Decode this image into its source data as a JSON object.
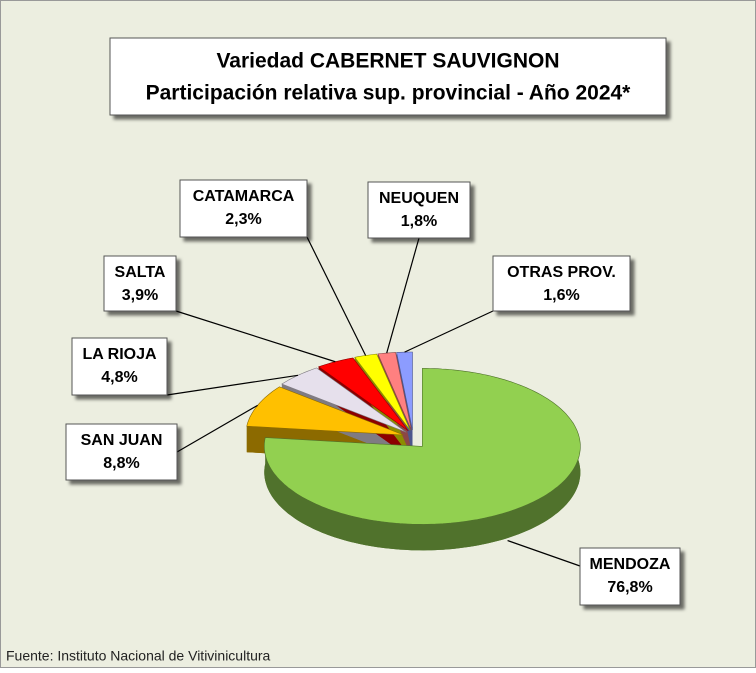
{
  "chart_data": {
    "type": "pie",
    "title": [
      "Variedad CABERNET SAUVIGNON",
      "Participación relativa sup. provincial - Año 2024*"
    ],
    "categories": [
      "MENDOZA",
      "SAN JUAN",
      "LA RIOJA",
      "SALTA",
      "CATAMARCA",
      "NEUQUEN",
      "OTRAS PROV."
    ],
    "values": [
      76.8,
      8.8,
      4.8,
      3.9,
      2.3,
      1.8,
      1.6
    ],
    "value_labels": [
      "76,8%",
      "8,8%",
      "4,8%",
      "3,9%",
      "2,3%",
      "1,8%",
      "1,6%"
    ],
    "colors": [
      "#92d050",
      "#ffc000",
      "#e6e0ec",
      "#ff0000",
      "#ffff00",
      "#ff8080",
      "#8c9cff"
    ],
    "source": "Fuente: Instituto Nacional de Vitivinicultura"
  }
}
